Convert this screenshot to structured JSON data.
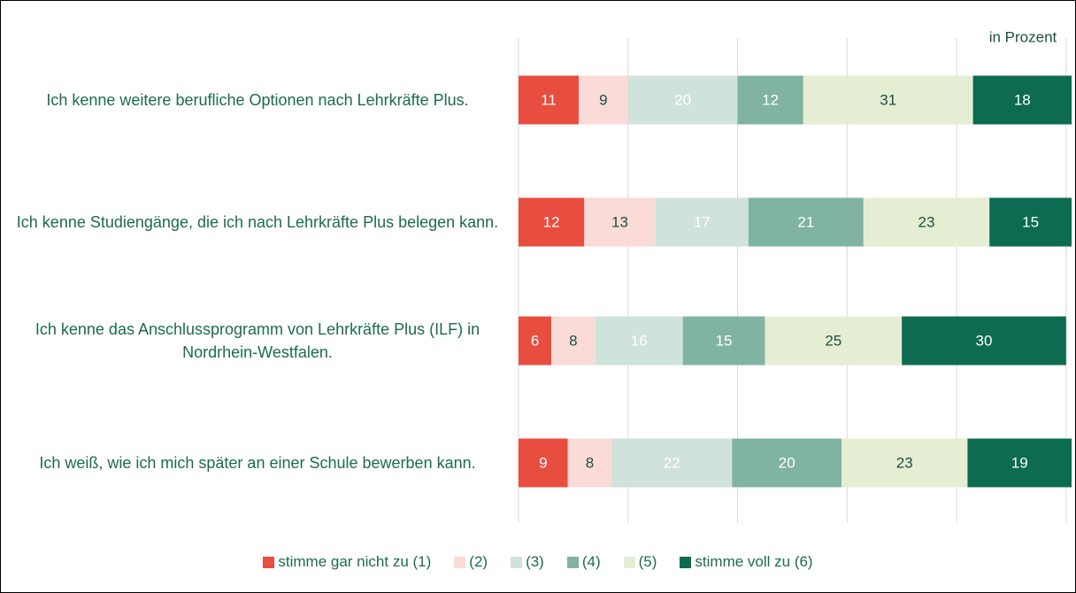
{
  "chart_data": {
    "type": "stacked_barh",
    "unit_label": "in Prozent",
    "categories": [
      "Ich kenne weitere berufliche Optionen nach Lehrkräfte Plus.",
      "Ich kenne Studiengänge, die ich nach Lehrkräfte Plus belegen kann.",
      "Ich kenne das Anschlussprogramm von Lehrkräfte Plus (ILF) in Nordrhein-Westfalen.",
      "Ich weiß, wie ich mich später an einer Schule bewerben kann."
    ],
    "series": [
      {
        "name": "stimme gar nicht zu (1)",
        "color": "#e84e3f",
        "label_color": "#ffffff",
        "values": [
          11,
          12,
          6,
          9
        ]
      },
      {
        "name": "(2)",
        "color": "#fadbd8",
        "label_color": "#1c4f3f",
        "values": [
          9,
          13,
          8,
          8
        ]
      },
      {
        "name": "(3)",
        "color": "#cfe2db",
        "label_color": "#ffffff",
        "values": [
          20,
          17,
          16,
          22
        ]
      },
      {
        "name": "(4)",
        "color": "#80b3a2",
        "label_color": "#ffffff",
        "values": [
          12,
          21,
          15,
          20
        ]
      },
      {
        "name": "(5)",
        "color": "#e5eed2",
        "label_color": "#1c4f3f",
        "values": [
          31,
          23,
          25,
          23
        ]
      },
      {
        "name": "stimme voll zu (6)",
        "color": "#0c6b50",
        "label_color": "#ffffff",
        "values": [
          18,
          15,
          30,
          19
        ]
      }
    ],
    "xlim": [
      0,
      101
    ],
    "xticks": [
      0,
      20,
      40,
      60,
      80,
      100
    ],
    "grid": true
  }
}
